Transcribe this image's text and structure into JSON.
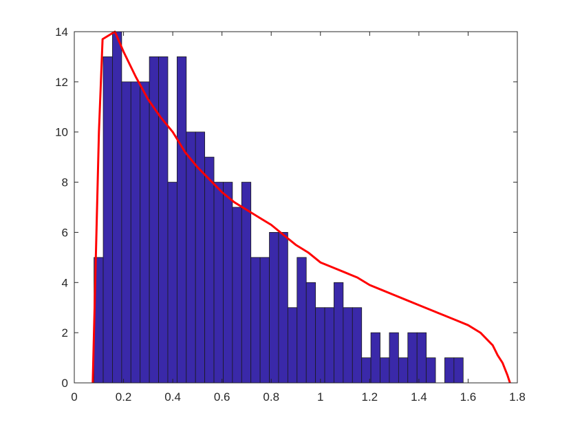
{
  "chart_data": {
    "type": "bar",
    "title": "",
    "xlabel": "",
    "ylabel": "",
    "xlim": [
      0,
      1.8
    ],
    "ylim": [
      0,
      14
    ],
    "x_ticks": [
      "0",
      "0.2",
      "0.4",
      "0.6",
      "0.8",
      "1",
      "1.2",
      "1.4",
      "1.6",
      "1.8"
    ],
    "y_ticks": [
      "0",
      "2",
      "4",
      "6",
      "8",
      "10",
      "12",
      "14"
    ],
    "grid": false,
    "bar_color": "#3a29a9",
    "curve_color": "#ff0000",
    "bin_start": 0.08,
    "bin_width": 0.0375,
    "series": [
      {
        "type": "histogram",
        "values": [
          5,
          13,
          14,
          12,
          12,
          12,
          13,
          13,
          8,
          13,
          10,
          10,
          9,
          8,
          8,
          7,
          8,
          5,
          5,
          6,
          6,
          3,
          5,
          4,
          3,
          3,
          4,
          3,
          3,
          1,
          2,
          1,
          2,
          1,
          2,
          2,
          1,
          0,
          1,
          1
        ]
      },
      {
        "type": "line",
        "x": [
          0.075,
          0.08,
          0.09,
          0.1,
          0.115,
          0.165,
          0.2,
          0.25,
          0.3,
          0.35,
          0.4,
          0.45,
          0.5,
          0.55,
          0.6,
          0.65,
          0.7,
          0.75,
          0.8,
          0.85,
          0.9,
          0.95,
          1.0,
          1.05,
          1.1,
          1.15,
          1.2,
          1.25,
          1.3,
          1.35,
          1.4,
          1.45,
          1.5,
          1.55,
          1.6,
          1.65,
          1.7,
          1.72,
          1.74,
          1.76,
          1.77
        ],
        "y": [
          0,
          2,
          6,
          10,
          13.7,
          14,
          13.2,
          12.2,
          11.3,
          10.6,
          10.0,
          9.2,
          8.6,
          8.1,
          7.6,
          7.2,
          6.9,
          6.6,
          6.3,
          5.9,
          5.5,
          5.2,
          4.8,
          4.6,
          4.4,
          4.2,
          3.9,
          3.7,
          3.5,
          3.3,
          3.1,
          2.9,
          2.7,
          2.5,
          2.3,
          2.0,
          1.5,
          1.1,
          0.8,
          0.3,
          0
        ]
      }
    ]
  }
}
